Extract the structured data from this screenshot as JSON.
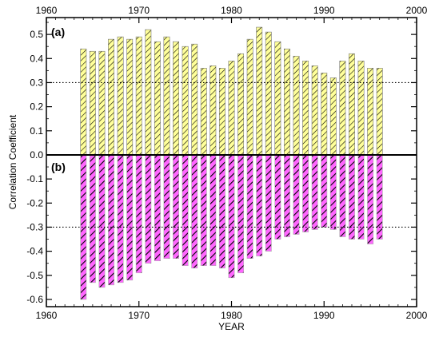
{
  "chart_data": {
    "type": "bar",
    "xlabel": "YEAR",
    "ylabel": "Correlation Coefficient",
    "xlim": [
      1960,
      2000
    ],
    "ylim": [
      -0.63,
      0.57
    ],
    "x_ticks": [
      1960,
      1970,
      1980,
      1990,
      2000
    ],
    "y_ticks": [
      0.5,
      0.4,
      0.3,
      0.2,
      0.1,
      0.0,
      -0.1,
      -0.2,
      -0.3,
      -0.4,
      -0.5,
      -0.6
    ],
    "y_tick_labels": [
      "0.5",
      "0.4",
      "0.3",
      "0.2",
      "0.1",
      "0.0",
      "-0.1",
      "-0.2",
      "-0.3",
      "-0.4",
      "-0.5",
      "-0.6"
    ],
    "reference_lines": [
      0.3,
      -0.3
    ],
    "grid": false,
    "colors": {
      "a": "#ffff99",
      "b": "#ff66ff",
      "hatch": "#000000"
    },
    "x": [
      1964,
      1965,
      1966,
      1967,
      1968,
      1969,
      1970,
      1971,
      1972,
      1973,
      1974,
      1975,
      1976,
      1977,
      1978,
      1979,
      1980,
      1981,
      1982,
      1983,
      1984,
      1985,
      1986,
      1987,
      1988,
      1989,
      1990,
      1991,
      1992,
      1993,
      1994,
      1995,
      1996
    ],
    "series": [
      {
        "name": "(a)",
        "values": [
          0.44,
          0.43,
          0.43,
          0.48,
          0.49,
          0.48,
          0.49,
          0.52,
          0.47,
          0.49,
          0.47,
          0.45,
          0.46,
          0.36,
          0.37,
          0.36,
          0.39,
          0.42,
          0.48,
          0.53,
          0.51,
          0.47,
          0.44,
          0.41,
          0.39,
          0.37,
          0.34,
          0.32,
          0.39,
          0.42,
          0.39,
          0.36,
          0.36
        ]
      },
      {
        "name": "(b)",
        "values": [
          -0.6,
          -0.53,
          -0.55,
          -0.54,
          -0.53,
          -0.52,
          -0.49,
          -0.45,
          -0.44,
          -0.43,
          -0.43,
          -0.46,
          -0.47,
          -0.46,
          -0.46,
          -0.47,
          -0.51,
          -0.49,
          -0.43,
          -0.42,
          -0.4,
          -0.35,
          -0.34,
          -0.33,
          -0.32,
          -0.31,
          -0.3,
          -0.31,
          -0.34,
          -0.35,
          -0.35,
          -0.37,
          -0.35
        ]
      }
    ]
  }
}
